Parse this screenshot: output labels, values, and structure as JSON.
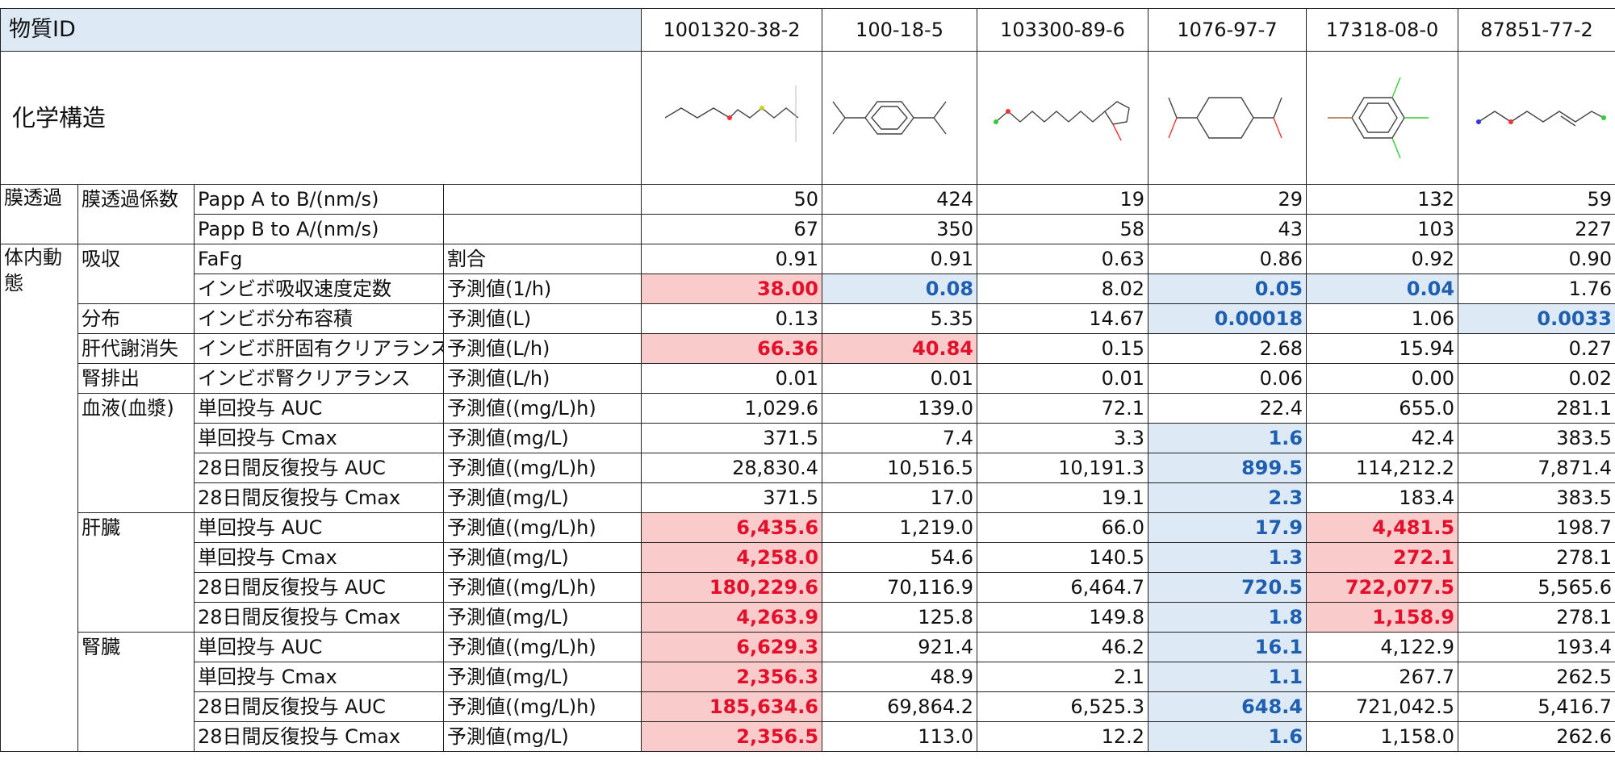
{
  "header": {
    "label": "物質ID",
    "ids": [
      "1001320-38-2",
      "100-18-5",
      "103300-89-6",
      "1076-97-7",
      "17318-08-0",
      "87851-77-2"
    ]
  },
  "structure_label": "化学構造",
  "sections": [
    {
      "label": "膜透過",
      "groups": [
        {
          "label": "膜透過係数",
          "rows": [
            {
              "item": "Papp A to B/(nm/s)",
              "values": [
                "50",
                "424",
                "19",
                "29",
                "132",
                "59"
              ]
            },
            {
              "item": "Papp B to A/(nm/s)",
              "values": [
                "67",
                "350",
                "58",
                "43",
                "103",
                "227"
              ]
            }
          ]
        }
      ]
    },
    {
      "label": "体内動態",
      "groups": [
        {
          "label": "吸収",
          "rows": [
            {
              "item": "FaFg",
              "unit": "割合",
              "values": [
                "0.91",
                "0.91",
                "0.63",
                "0.86",
                "0.92",
                "0.90"
              ]
            },
            {
              "item": "インビボ吸収速度定数",
              "unit": "予測値(1/h)",
              "values": [
                "38.00",
                "0.08",
                "8.02",
                "0.05",
                "0.04",
                "1.76"
              ],
              "flags": [
                "red",
                "blue",
                null,
                "blue",
                "blue",
                null
              ]
            }
          ]
        },
        {
          "label": "分布",
          "rows": [
            {
              "item": "インビボ分布容積",
              "unit": "予測値(L)",
              "values": [
                "0.13",
                "5.35",
                "14.67",
                "0.00018",
                "1.06",
                "0.0033"
              ],
              "flags": [
                null,
                null,
                null,
                "blue",
                null,
                "blue"
              ]
            }
          ]
        },
        {
          "label": "肝代謝消失",
          "rows": [
            {
              "item": "インビボ肝固有クリアランス",
              "unit": "予測値(L/h)",
              "values": [
                "66.36",
                "40.84",
                "0.15",
                "2.68",
                "15.94",
                "0.27"
              ],
              "flags": [
                "red",
                "red",
                null,
                null,
                null,
                null
              ]
            }
          ]
        },
        {
          "label": "腎排出",
          "rows": [
            {
              "item": "インビボ腎クリアランス",
              "unit": "予測値(L/h)",
              "values": [
                "0.01",
                "0.01",
                "0.01",
                "0.06",
                "0.00",
                "0.02"
              ]
            }
          ]
        },
        {
          "label": "血液(血漿)",
          "rows": [
            {
              "item": "単回投与 AUC",
              "unit": "予測値((mg/L)h)",
              "values": [
                "1,029.6",
                "139.0",
                "72.1",
                "22.4",
                "655.0",
                "281.1"
              ]
            },
            {
              "item": "単回投与 Cmax",
              "unit": "予測値(mg/L)",
              "values": [
                "371.5",
                "7.4",
                "3.3",
                "1.6",
                "42.4",
                "383.5"
              ],
              "flags": [
                null,
                null,
                null,
                "blue",
                null,
                null
              ]
            },
            {
              "item": "28日間反復投与 AUC",
              "unit": "予測値((mg/L)h)",
              "values": [
                "28,830.4",
                "10,516.5",
                "10,191.3",
                "899.5",
                "114,212.2",
                "7,871.4"
              ],
              "flags": [
                null,
                null,
                null,
                "blue",
                null,
                null
              ]
            },
            {
              "item": "28日間反復投与 Cmax",
              "unit": "予測値(mg/L)",
              "values": [
                "371.5",
                "17.0",
                "19.1",
                "2.3",
                "183.4",
                "383.5"
              ],
              "flags": [
                null,
                null,
                null,
                "blue",
                null,
                null
              ]
            }
          ]
        },
        {
          "label": "肝臓",
          "rows": [
            {
              "item": "単回投与 AUC",
              "unit": "予測値((mg/L)h)",
              "values": [
                "6,435.6",
                "1,219.0",
                "66.0",
                "17.9",
                "4,481.5",
                "198.7"
              ],
              "flags": [
                "red",
                null,
                null,
                "blue",
                "red",
                null
              ]
            },
            {
              "item": "単回投与 Cmax",
              "unit": "予測値(mg/L)",
              "values": [
                "4,258.0",
                "54.6",
                "140.5",
                "1.3",
                "272.1",
                "278.1"
              ],
              "flags": [
                "red",
                null,
                null,
                "blue",
                "red",
                null
              ]
            },
            {
              "item": "28日間反復投与 AUC",
              "unit": "予測値((mg/L)h)",
              "values": [
                "180,229.6",
                "70,116.9",
                "6,464.7",
                "720.5",
                "722,077.5",
                "5,565.6"
              ],
              "flags": [
                "red",
                null,
                null,
                "blue",
                "red",
                null
              ]
            },
            {
              "item": "28日間反復投与 Cmax",
              "unit": "予測値(mg/L)",
              "values": [
                "4,263.9",
                "125.8",
                "149.8",
                "1.8",
                "1,158.9",
                "278.1"
              ],
              "flags": [
                "red",
                null,
                null,
                "blue",
                "red",
                null
              ]
            }
          ]
        },
        {
          "label": "腎臓",
          "rows": [
            {
              "item": "単回投与 AUC",
              "unit": "予測値((mg/L)h)",
              "values": [
                "6,629.3",
                "921.4",
                "46.2",
                "16.1",
                "4,122.9",
                "193.4"
              ],
              "flags": [
                "red",
                null,
                null,
                "blue",
                null,
                null
              ]
            },
            {
              "item": "単回投与 Cmax",
              "unit": "予測値(mg/L)",
              "values": [
                "2,356.3",
                "48.9",
                "2.1",
                "1.1",
                "267.7",
                "262.5"
              ],
              "flags": [
                "red",
                null,
                null,
                "blue",
                null,
                null
              ]
            },
            {
              "item": "28日間反復投与 AUC",
              "unit": "予測値((mg/L)h)",
              "values": [
                "185,634.6",
                "69,864.2",
                "6,525.3",
                "648.4",
                "721,042.5",
                "5,416.7"
              ],
              "flags": [
                "red",
                null,
                null,
                "blue",
                null,
                null
              ]
            },
            {
              "item": "28日間反復投与 Cmax",
              "unit": "予測値(mg/L)",
              "values": [
                "2,356.5",
                "113.0",
                "12.2",
                "1.6",
                "1,158.0",
                "262.6"
              ],
              "flags": [
                "red",
                null,
                null,
                "blue",
                null,
                null
              ]
            }
          ]
        }
      ]
    }
  ]
}
